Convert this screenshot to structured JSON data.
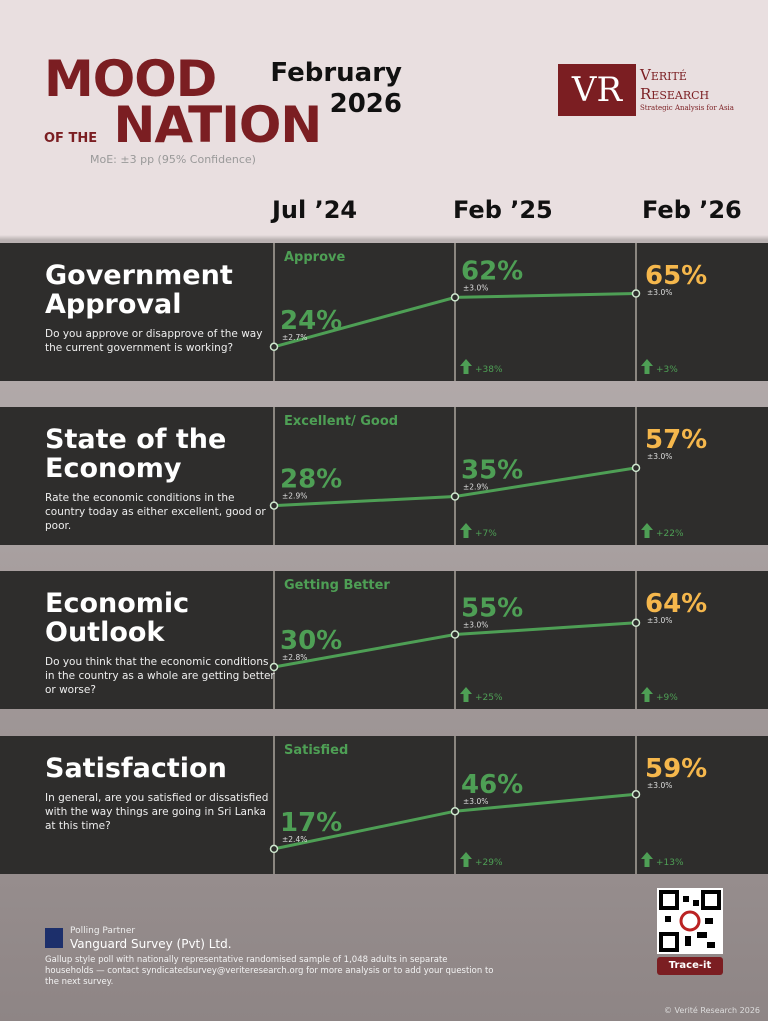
{
  "header": {
    "title_line1": "MOOD",
    "title_small": "OF THE",
    "title_line2": "NATION",
    "date_line1": "February",
    "date_line2": "2026",
    "moe": "MoE: ±3 pp (95% Confidence)",
    "logo_mark": "VR",
    "logo_name1": "Verité",
    "logo_name2": "Research",
    "logo_tagline": "Strategic Analysis for Asia"
  },
  "chart_data": [
    {
      "type": "line",
      "categories": [
        "Jul ’24",
        "Feb ’25",
        "Feb ’26"
      ],
      "title": "Government Approval",
      "question": "Do you approve or disapprove of the way the current government is working?",
      "series_label": "Approve",
      "values": [
        24,
        62,
        65
      ],
      "value_labels": [
        "24%",
        "62%",
        "65%"
      ],
      "margins": [
        "±2.7%",
        "±3.0%",
        "±3.0%"
      ],
      "changes": [
        "+38%",
        "+3%"
      ],
      "ylim": [
        0,
        100
      ],
      "color": "#4e9f55"
    },
    {
      "type": "line",
      "title": "State of the Economy",
      "question": "Rate the economic conditions in the country today as either excellent, good or poor.",
      "series_label": "Excellent/ Good",
      "values": [
        28,
        35,
        57
      ],
      "value_labels": [
        "28%",
        "35%",
        "57%"
      ],
      "margins": [
        "±2.9%",
        "±2.9%",
        "±3.0%"
      ],
      "changes": [
        "+7%",
        "+22%"
      ],
      "ylim": [
        0,
        100
      ],
      "color": "#4e9f55"
    },
    {
      "type": "line",
      "title": "Economic Outlook",
      "question": "Do you think that the economic conditions in the country as a whole are getting better or worse?",
      "series_label": "Getting Better",
      "values": [
        30,
        55,
        64
      ],
      "value_labels": [
        "30%",
        "55%",
        "64%"
      ],
      "margins": [
        "±2.8%",
        "±3.0%",
        "±3.0%"
      ],
      "changes": [
        "+25%",
        "+9%"
      ],
      "ylim": [
        0,
        100
      ],
      "color": "#4e9f55"
    },
    {
      "type": "line",
      "title": "Satisfaction",
      "question": "In general, are you satisfied or dissatisfied with the way things are going in Sri Lanka at this time?",
      "series_label": "Satisfied",
      "values": [
        17,
        46,
        59
      ],
      "value_labels": [
        "17%",
        "46%",
        "59%"
      ],
      "margins": [
        "±2.4%",
        "±3.0%",
        "±3.0%"
      ],
      "changes": [
        "+29%",
        "+13%"
      ],
      "ylim": [
        0,
        100
      ],
      "color": "#4e9f55"
    }
  ],
  "footer": {
    "partner_label": "Polling Partner",
    "partner_name": "Vanguard Survey (Pvt) Ltd.",
    "note": "Gallup style poll with nationally representative randomised sample of 1,048 adults in separate households — contact syndicatedsurvey@veriteresearch.org for more analysis or to add your question to the next survey.",
    "qr_label": "Trace-it",
    "copyright": "© Verité Research 2026"
  }
}
